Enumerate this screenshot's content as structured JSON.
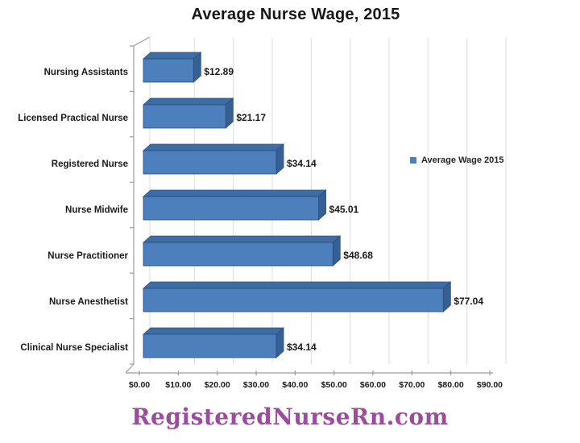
{
  "chart_data": {
    "type": "bar",
    "orientation": "horizontal",
    "style": "3d",
    "title": "Average Nurse Wage, 2015",
    "categories": [
      "Nursing Assistants",
      "Licensed Practical Nurse",
      "Registered Nurse",
      "Nurse Midwife",
      "Nurse Practitioner",
      "Nurse Anesthetist",
      "Clinical Nurse Specialist"
    ],
    "values": [
      12.89,
      21.17,
      34.14,
      45.01,
      48.68,
      77.04,
      34.14
    ],
    "data_labels": [
      "$12.89",
      "$21.17",
      "$34.14",
      "$45.01",
      "$48.68",
      "$77.04",
      "$34.14"
    ],
    "x_tick_labels": [
      "$0.00",
      "$10.00",
      "$20.00",
      "$30.00",
      "$40.00",
      "$50.00",
      "$60.00",
      "$70.00",
      "$80.00",
      "$90.00"
    ],
    "xlim": [
      0,
      90
    ],
    "x_tick_step": 10,
    "grid": true,
    "legend": {
      "label": "Average Wage 2015",
      "position": "right"
    },
    "colors": {
      "bar_front": "#4C7FBC",
      "bar_top": "#3E6DA6",
      "bar_side": "#365F94",
      "bar_outline": "#2A4D7E",
      "gridline": "#DDDDDD",
      "axis": "#9C9C9C",
      "text": "#1A1A1A"
    }
  },
  "footer": {
    "text": "RegisteredNurseRn.com",
    "color": "#9B4C9D"
  }
}
